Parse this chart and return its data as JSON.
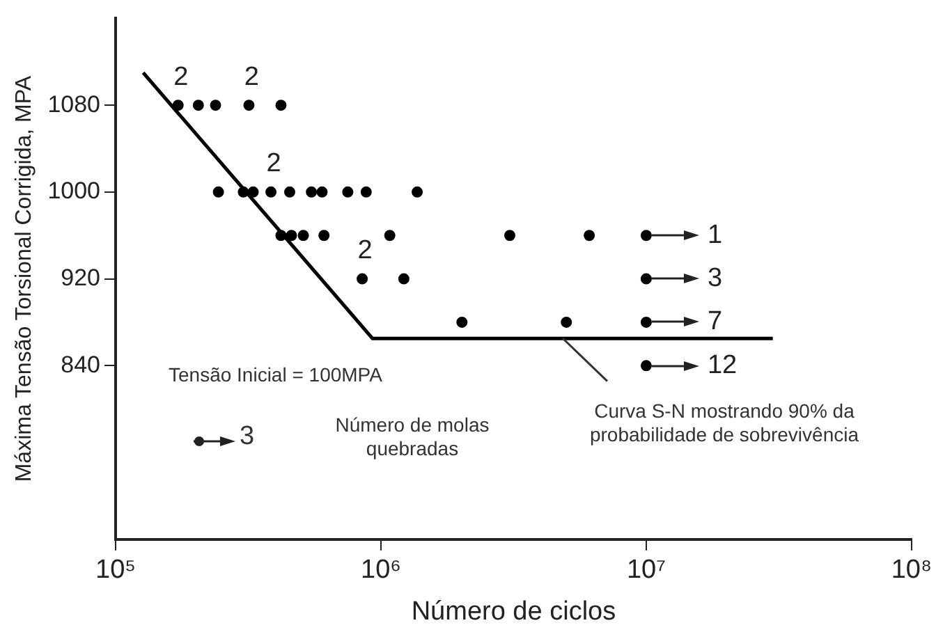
{
  "chart_data": {
    "type": "scatter",
    "xlabel": "Número de ciclos",
    "ylabel": "Máxima Tensão Torsional Corrigida, MPA",
    "log": "x",
    "xlim": [
      100000,
      100000000
    ],
    "xticks": [
      {
        "value": 100000,
        "label": "10⁵"
      },
      {
        "value": 1000000,
        "label": "10⁶"
      },
      {
        "value": 10000000,
        "label": "10⁷"
      },
      {
        "value": 100000000,
        "label": "10⁸"
      }
    ],
    "ylim": [
      680,
      1160
    ],
    "yticks": [
      840,
      920,
      1000,
      1080
    ],
    "grid": false,
    "legend": false,
    "marker": "circle",
    "series": [
      {
        "color": "#000000",
        "x": [
          172000,
          205000,
          238000,
          318000,
          420000,
          244000,
          303000,
          330000,
          385000,
          453000,
          547000,
          600000,
          750000,
          880000,
          1370000,
          420000,
          460000,
          510000,
          610000,
          1080000,
          3060000,
          6100000,
          850000,
          1220000,
          2020000,
          5000000
        ],
        "values": [
          1080,
          1080,
          1080,
          1080,
          1080,
          1000,
          1000,
          1000,
          1000,
          1000,
          1000,
          1000,
          1000,
          1000,
          1000,
          960,
          960,
          960,
          960,
          960,
          960,
          960,
          920,
          920,
          880,
          880
        ]
      },
      {
        "color": "#000000",
        "x": [
          10000000,
          10000000,
          10000000,
          10000000
        ],
        "values": [
          960,
          920,
          880,
          840
        ]
      },
      {
        "type": "line",
        "color": "#000000",
        "marker": "none",
        "x": [
          127000,
          930000,
          30000000
        ],
        "values": [
          1110,
          865,
          865
        ]
      }
    ],
    "annotations": [
      {
        "text": "2",
        "x": 172000,
        "y": 1080
      },
      {
        "text": "2",
        "x": 318000,
        "y": 1080
      },
      {
        "text": "2",
        "x": 385000,
        "y": 1000
      },
      {
        "text": "2",
        "x": 850000,
        "y": 920
      },
      {
        "text": "1",
        "x": 10000000,
        "y": 960
      },
      {
        "text": "3",
        "x": 10000000,
        "y": 920
      },
      {
        "text": "7",
        "x": 10000000,
        "y": 880
      },
      {
        "text": "12",
        "x": 10000000,
        "y": 840
      },
      "Tensão Inicial = 100MPA",
      "3",
      "Número de molas quebradas",
      "Curva S-N mostrando 90% da probabilidade de sobrevivência"
    ]
  }
}
